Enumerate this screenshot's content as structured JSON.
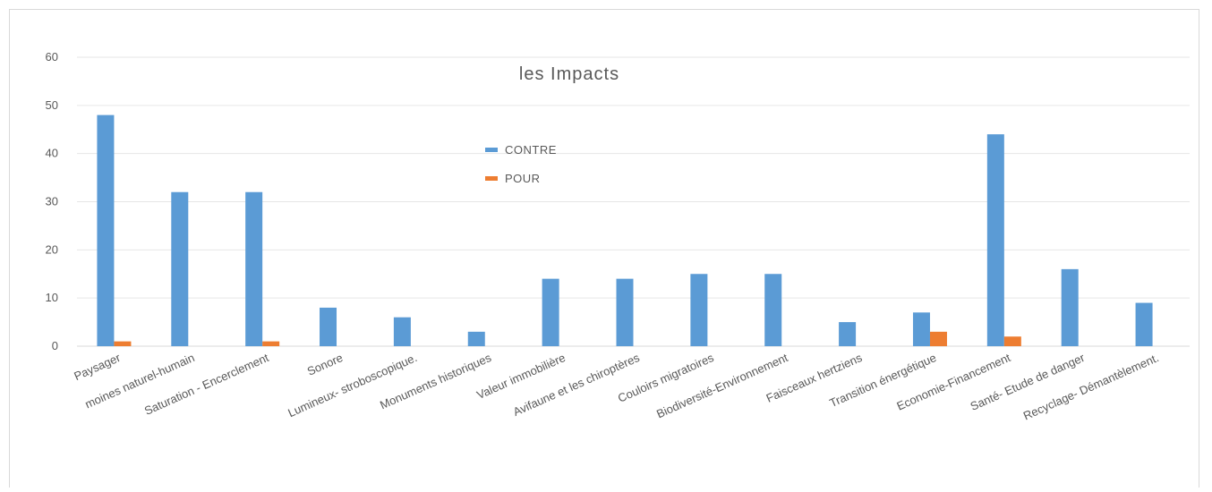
{
  "chart_data": {
    "type": "bar",
    "title": "les Impacts",
    "categories": [
      "Paysager",
      "moines naturel-humain",
      "Saturation - Encerclement",
      "Sonore",
      "Lumineux- stroboscopique.",
      "Monuments historiques",
      "Valeur immobilière",
      "Avifaune et les chiroptères",
      "Couloirs migratoires",
      "Biodiversité-Environnement",
      "Faisceaux hertziens",
      "Transition énergétique",
      "Economie-Financement",
      "Santé- Etude de danger",
      "Recyclage- Démantèlement."
    ],
    "series": [
      {
        "name": "CONTRE",
        "color": "#5b9bd5",
        "values": [
          48,
          32,
          32,
          8,
          6,
          3,
          14,
          14,
          15,
          15,
          5,
          7,
          44,
          16,
          9
        ]
      },
      {
        "name": "POUR",
        "color": "#ed7d31",
        "values": [
          1,
          0,
          1,
          0,
          0,
          0,
          0,
          0,
          0,
          0,
          0,
          3,
          2,
          0,
          0
        ]
      }
    ],
    "ylim": [
      0,
      60
    ],
    "yticks": [
      "0",
      "10",
      "20",
      "30",
      "40",
      "50",
      "60"
    ],
    "grid": true,
    "legend_position": "top-center"
  }
}
